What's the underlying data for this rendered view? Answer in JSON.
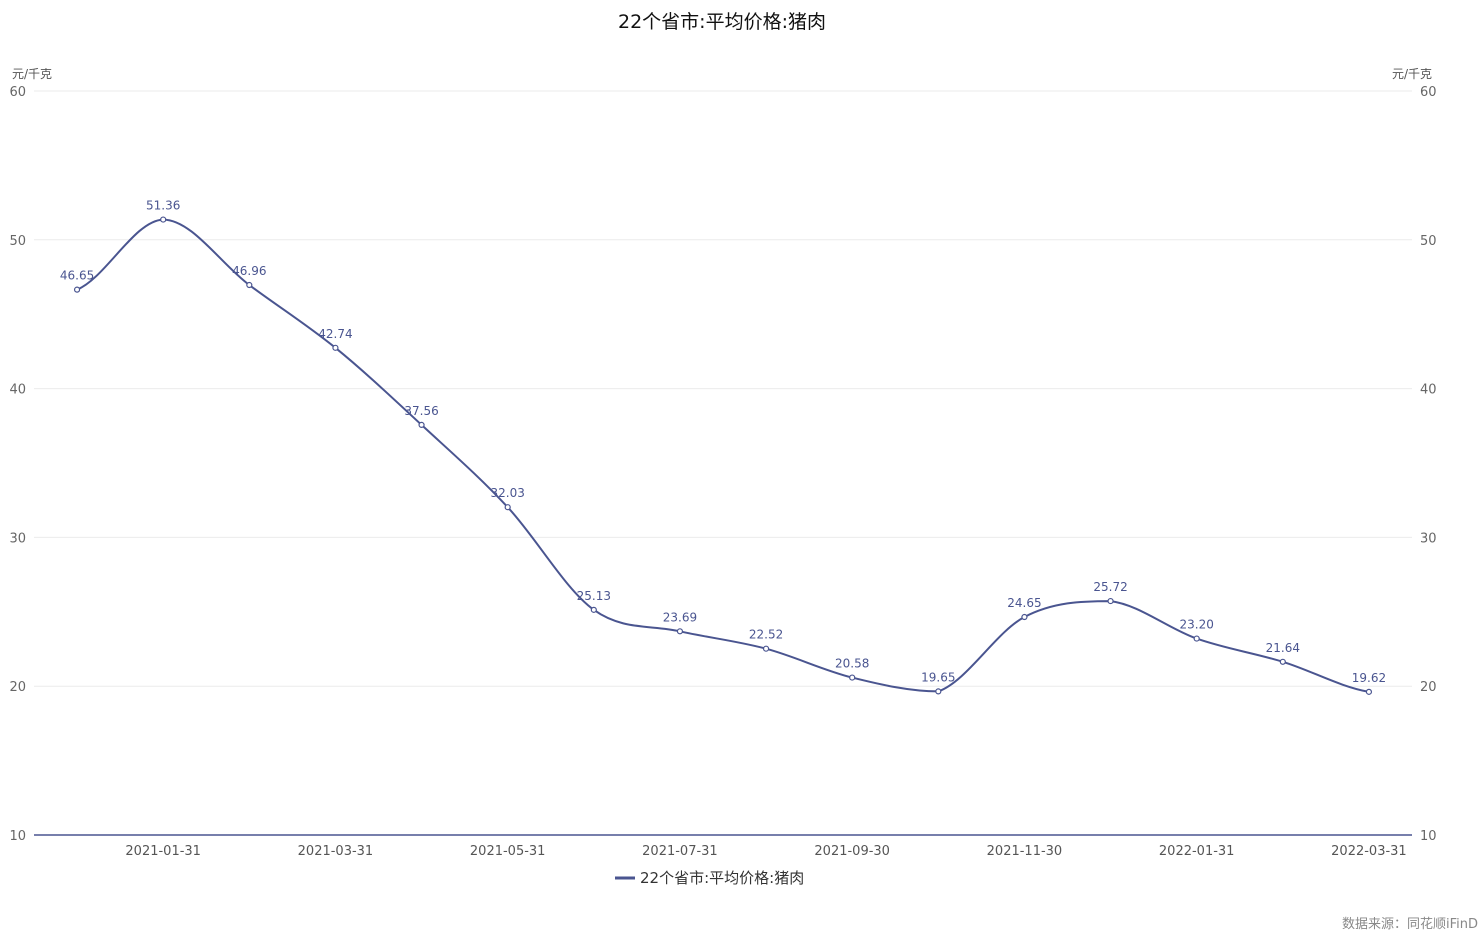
{
  "chart_data": {
    "type": "line",
    "title": "22个省市:平均价格:猪肉",
    "y_unit_left": "元/千克",
    "y_unit_right": "元/千克",
    "ylim": [
      10,
      60
    ],
    "yticks": [
      10,
      20,
      30,
      40,
      50,
      60
    ],
    "x": [
      "2020-12-31",
      "2021-01-31",
      "2021-02-28",
      "2021-03-31",
      "2021-04-30",
      "2021-05-31",
      "2021-06-30",
      "2021-07-31",
      "2021-08-31",
      "2021-09-30",
      "2021-10-31",
      "2021-11-30",
      "2021-12-31",
      "2022-01-31",
      "2022-02-28",
      "2022-03-31"
    ],
    "xtick_labels": [
      "2021-01-31",
      "2021-03-31",
      "2021-05-31",
      "2021-07-31",
      "2021-09-30",
      "2021-11-30",
      "2022-01-31",
      "2022-03-31"
    ],
    "series": [
      {
        "name": "22个省市:平均价格:猪肉",
        "color": "#4a5590",
        "values": [
          46.65,
          51.36,
          46.96,
          42.74,
          37.56,
          32.03,
          25.13,
          23.69,
          22.52,
          20.58,
          19.65,
          24.65,
          25.72,
          23.2,
          21.64,
          19.62
        ],
        "labels": [
          "46.65",
          "51.36",
          "46.96",
          "42.74",
          "37.56",
          "32.03",
          "25.13",
          "23.69",
          "22.52",
          "20.58",
          "19.65",
          "24.65",
          "25.72",
          "23.20",
          "21.64",
          "19.62"
        ]
      }
    ],
    "grid": true,
    "legend_position": "bottom-center"
  },
  "source_text": "数据来源：同花顺iFinD"
}
